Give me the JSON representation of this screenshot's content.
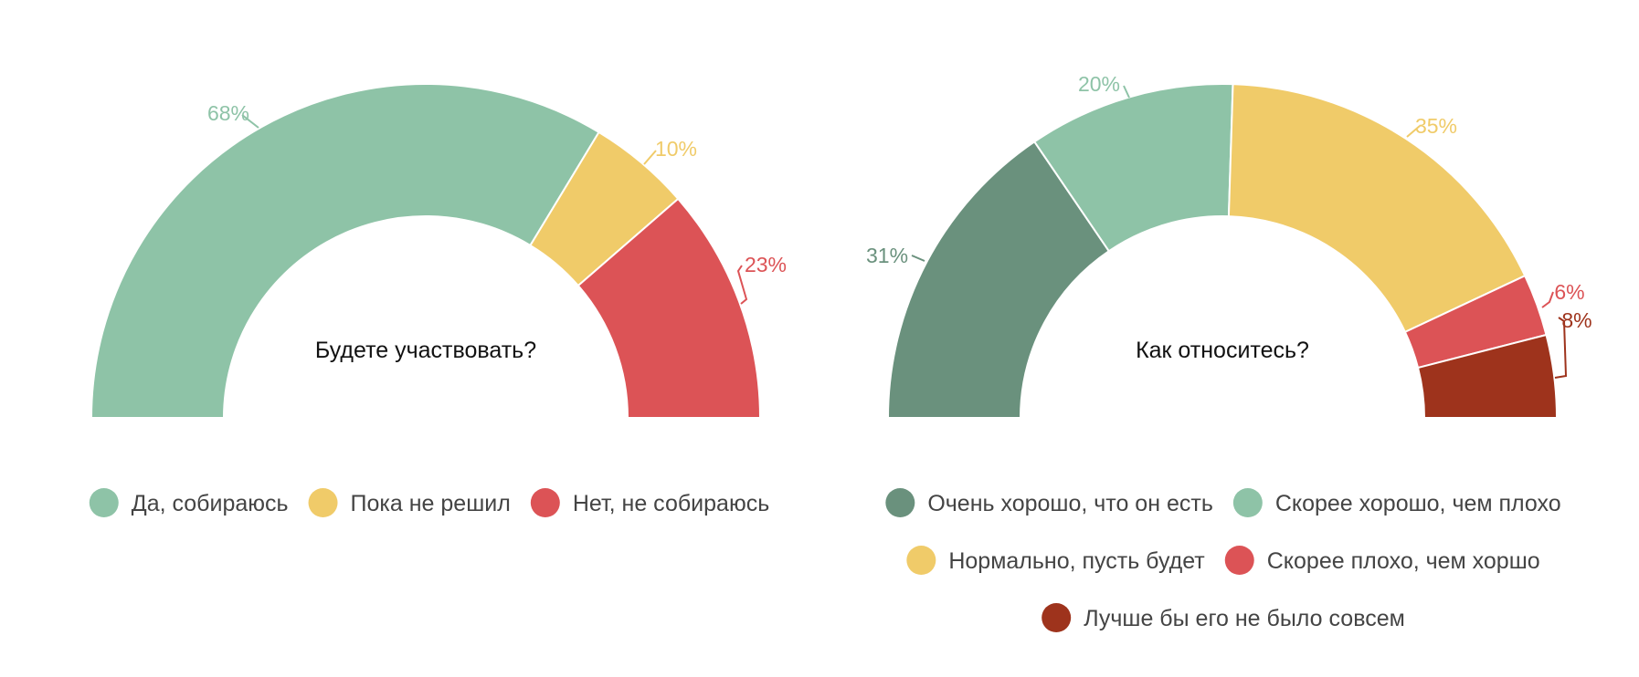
{
  "chart_data": [
    {
      "type": "pie",
      "variant": "half-donut",
      "title": "Будете участвовать?",
      "slices": [
        {
          "label": "Да, собираюсь",
          "value": 68,
          "display": "68%",
          "color": "#8EC3A7"
        },
        {
          "label": "Пока не решил",
          "value": 10,
          "display": "10%",
          "color": "#F0CB69"
        },
        {
          "label": "Нет, не собираюсь",
          "value": 23,
          "display": "23%",
          "color": "#DC5356"
        }
      ],
      "legend_position": "bottom"
    },
    {
      "type": "pie",
      "variant": "half-donut",
      "title": "Как относитесь?",
      "slices": [
        {
          "label": "Очень хорошо, что он есть",
          "value": 31,
          "display": "31%",
          "color": "#6A917D"
        },
        {
          "label": "Скорее хорошо, чем плохо",
          "value": 20,
          "display": "20%",
          "color": "#8EC3A7"
        },
        {
          "label": "Нормально, пусть будет",
          "value": 35,
          "display": "35%",
          "color": "#F0CB69"
        },
        {
          "label": "Скорее плохо, чем хоршо",
          "value": 6,
          "display": "6%",
          "color": "#DC5356"
        },
        {
          "label": "Лучше бы его не было совсем",
          "value": 8,
          "display": "8%",
          "color": "#9E331C"
        }
      ],
      "legend_position": "bottom"
    }
  ]
}
